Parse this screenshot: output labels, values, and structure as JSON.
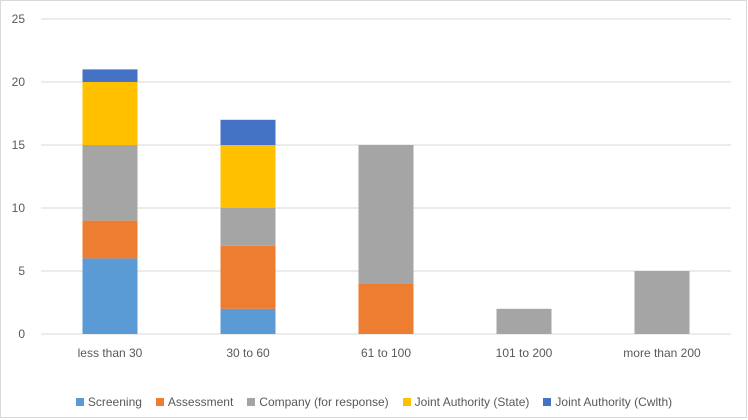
{
  "chart_data": {
    "type": "bar",
    "stacked": true,
    "title": "",
    "xlabel": "",
    "ylabel": "",
    "ylim": [
      0,
      25
    ],
    "yticks": [
      0,
      5,
      10,
      15,
      20,
      25
    ],
    "grid": true,
    "legend_position": "bottom",
    "categories": [
      "less than 30",
      "30 to 60",
      "61 to 100",
      "101 to 200",
      "more than 200"
    ],
    "series": [
      {
        "name": "Screening",
        "color": "#5b9bd5",
        "values": [
          6,
          2,
          0,
          0,
          0
        ]
      },
      {
        "name": "Assessment",
        "color": "#ed7d31",
        "values": [
          3,
          5,
          4,
          0,
          0
        ]
      },
      {
        "name": "Company (for response)",
        "color": "#a5a5a5",
        "values": [
          6,
          3,
          11,
          2,
          5
        ]
      },
      {
        "name": "Joint Authority (State)",
        "color": "#ffc000",
        "values": [
          5,
          5,
          0,
          0,
          0
        ]
      },
      {
        "name": "Joint Authority (Cwlth)",
        "color": "#4472c4",
        "values": [
          1,
          2,
          0,
          0,
          0
        ]
      }
    ]
  }
}
